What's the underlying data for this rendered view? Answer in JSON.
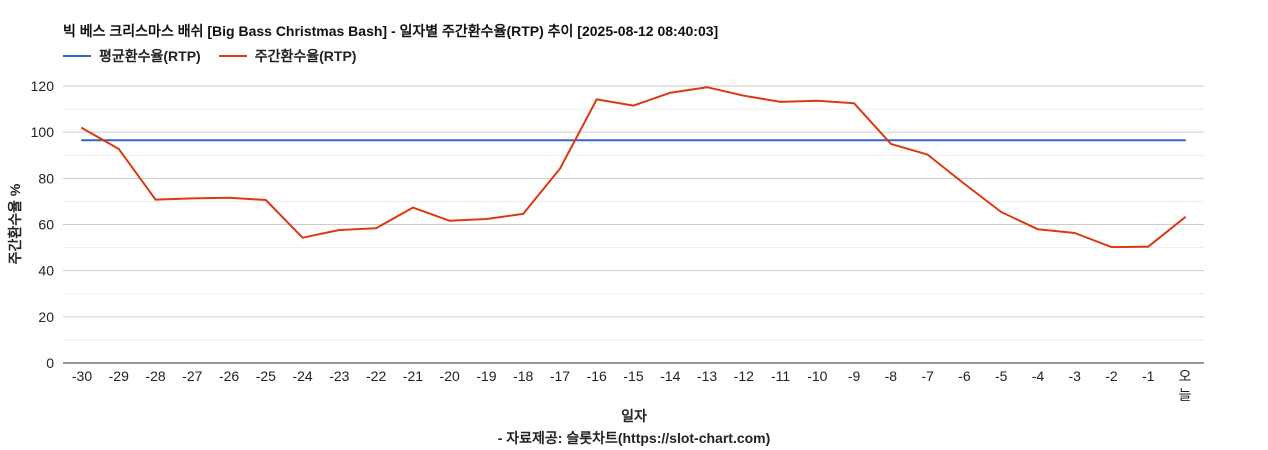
{
  "chart_data": {
    "type": "line",
    "title": "빅 베스 크리스마스 배쉬 [Big Bass Christmas Bash] - 일자별 주간환수율(RTP) 추이 [2025-08-12 08:40:03]",
    "xlabel": "일자",
    "ylabel": "주간환수율 %",
    "source": "- 자료제공: 슬롯차트(https://slot-chart.com)",
    "ylim": [
      0,
      120
    ],
    "yticks": [
      "0",
      "20",
      "40",
      "60",
      "80",
      "100",
      "120"
    ],
    "grid": true,
    "legend_position": "top-left",
    "categories": [
      "-30",
      "-29",
      "-28",
      "-27",
      "-26",
      "-25",
      "-24",
      "-23",
      "-22",
      "-21",
      "-20",
      "-19",
      "-18",
      "-17",
      "-16",
      "-15",
      "-14",
      "-13",
      "-12",
      "-11",
      "-10",
      "-9",
      "-8",
      "-7",
      "-6",
      "-5",
      "-4",
      "-3",
      "-2",
      "-1",
      "오늘"
    ],
    "series": [
      {
        "name": "평균환수율(RTP)",
        "color": "#3366cc",
        "values": [
          96.5,
          96.5,
          96.5,
          96.5,
          96.5,
          96.5,
          96.5,
          96.5,
          96.5,
          96.5,
          96.5,
          96.5,
          96.5,
          96.5,
          96.5,
          96.5,
          96.5,
          96.5,
          96.5,
          96.5,
          96.5,
          96.5,
          96.5,
          96.5,
          96.5,
          96.5,
          96.5,
          96.5,
          96.5,
          96.5,
          96.5
        ]
      },
      {
        "name": "주간환수율(RTP)",
        "color": "#dc3912",
        "values": [
          101.8,
          92.7,
          70.8,
          71.3,
          71.6,
          70.6,
          54.3,
          57.6,
          58.4,
          67.3,
          61.6,
          62.4,
          64.6,
          84.2,
          114.2,
          111.5,
          117.1,
          119.5,
          115.8,
          113.1,
          113.6,
          112.5,
          94.9,
          90.3,
          77.6,
          65.4,
          57.9,
          56.3,
          50.2,
          50.4,
          63.1
        ]
      }
    ]
  }
}
